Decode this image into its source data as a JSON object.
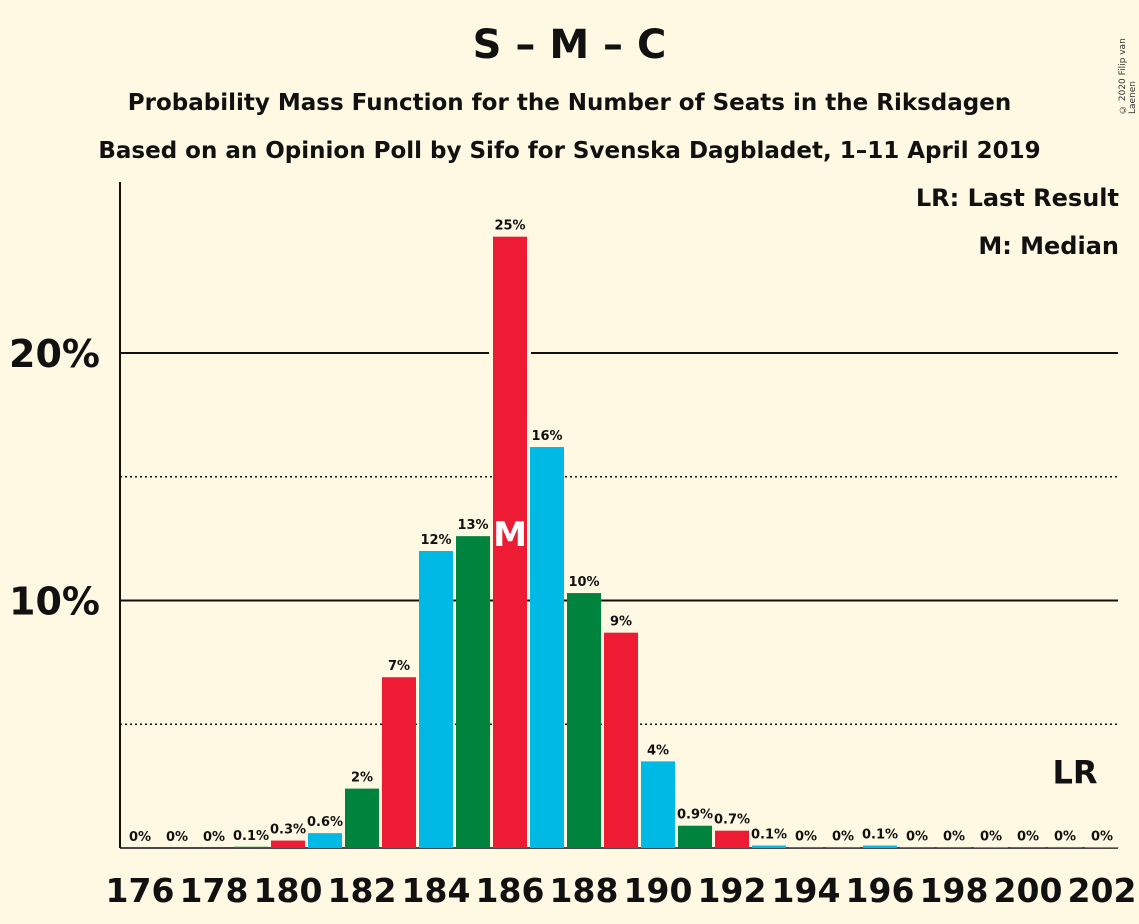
{
  "chart_data": {
    "type": "bar",
    "title": "S – M – C",
    "subtitle": "Probability Mass Function for the Number of Seats in the Riksdagen",
    "subtitle2": "Based on an Opinion Poll by Sifo for Svenska Dagbladet, 1–11 April 2019",
    "copyright": "© 2020 Filip van Laenen",
    "legend": {
      "lr": "LR: Last Result",
      "m": "M: Median"
    },
    "x": [
      176,
      177,
      178,
      179,
      180,
      181,
      182,
      183,
      184,
      185,
      186,
      187,
      188,
      189,
      190,
      191,
      192,
      193,
      194,
      195,
      196,
      197,
      198,
      199,
      200,
      201,
      202
    ],
    "values": [
      0,
      0,
      0,
      0.05,
      0.3,
      0.6,
      2.4,
      6.9,
      12.0,
      12.6,
      24.7,
      16.2,
      10.3,
      8.7,
      3.5,
      0.9,
      0.7,
      0.1,
      0.02,
      0.02,
      0.1,
      0.02,
      0.02,
      0.02,
      0.02,
      0.02,
      0.02
    ],
    "labels": [
      "0%",
      "0%",
      "0%",
      "0.1%",
      "0.3%",
      "0.6%",
      "2%",
      "7%",
      "12%",
      "13%",
      "25%",
      "16%",
      "10%",
      "9%",
      "4%",
      "0.9%",
      "0.7%",
      "0.1%",
      "0%",
      "0%",
      "0.1%",
      "0%",
      "0%",
      "0%",
      "0%",
      "0%",
      "0%"
    ],
    "bar_colors": [
      "#ed1b34",
      "#00b9e4",
      "#00843d"
    ],
    "xtick_labels": [
      "176",
      "178",
      "180",
      "182",
      "184",
      "186",
      "188",
      "190",
      "192",
      "194",
      "196",
      "198",
      "200",
      "202"
    ],
    "ytick_labels": [
      "10%",
      "20%"
    ],
    "ylim": [
      0,
      27
    ],
    "median_seat": 186,
    "median_marker": "M",
    "last_result_seat": 201,
    "last_result_marker": "LR",
    "grid": {
      "solid": [
        10,
        20
      ],
      "dotted": [
        5,
        15
      ]
    }
  }
}
